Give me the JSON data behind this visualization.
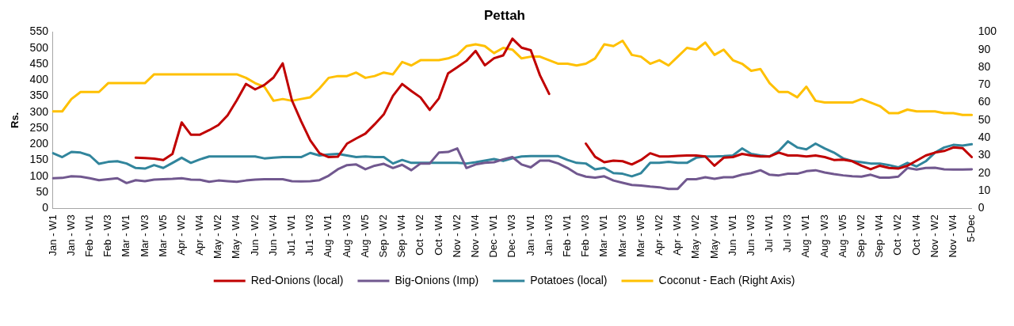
{
  "chart_data": {
    "type": "line",
    "title": "Pettah",
    "ylabel": "Rs.",
    "categories": [
      "Jan - W1",
      null,
      "Jan - W3",
      null,
      "Feb - W1",
      null,
      "Feb - W3",
      null,
      "Mar - W1",
      null,
      "Mar - W3",
      null,
      "Mar - W5",
      null,
      "Apr - W2",
      null,
      "Apr - W4",
      null,
      "May - W2",
      null,
      "May - W4",
      null,
      "Jun - W2",
      null,
      "Jun - W4",
      null,
      "Ju1 - W1",
      null,
      "Ju1 - W3",
      null,
      "Aug - W1",
      null,
      "Aug - W3",
      null,
      "Aug - W5",
      null,
      "Sep - W2",
      null,
      "Sep - W4",
      null,
      "Oct - W2",
      null,
      "Oct - W4",
      null,
      "Nov - W2",
      null,
      "Nov - W4",
      null,
      "Dec - W1",
      null,
      "Dec - W3",
      null,
      "Jan - W1",
      null,
      "Jan - W3",
      null,
      "Feb - W1",
      null,
      "Feb - W3",
      null,
      "Mar - W1",
      null,
      "Mar - W3",
      null,
      "Mar - W5",
      null,
      "Apr - W2",
      null,
      "Apr - W4",
      null,
      "May - W2",
      null,
      "May - W4",
      null,
      "Jun - W1",
      null,
      "Jun - W3",
      null,
      "Jul - W1",
      null,
      "Jul - W3",
      null,
      "Aug - W1",
      null,
      "Aug - W3",
      null,
      "Aug - W5",
      null,
      "Sep - W2",
      null,
      "Sep - W4",
      null,
      "Oct - W2",
      null,
      "Oct - W4",
      null,
      "Nov - W2",
      null,
      "Nov - W4",
      null,
      "5-Dec"
    ],
    "series": [
      {
        "name": "Red-Onions (local)",
        "color": "#c00000",
        "values": [
          null,
          null,
          null,
          null,
          null,
          null,
          null,
          null,
          null,
          158,
          157,
          155,
          151,
          170,
          268,
          230,
          230,
          244,
          260,
          290,
          337,
          388,
          371,
          385,
          408,
          452,
          337,
          272,
          212,
          172,
          160,
          161,
          202,
          218,
          233,
          262,
          293,
          351,
          388,
          366,
          346,
          307,
          343,
          421,
          440,
          460,
          491,
          446,
          468,
          477,
          529,
          501,
          493,
          415,
          357,
          null,
          null,
          null,
          202,
          161,
          144,
          149,
          147,
          137,
          151,
          172,
          162,
          162,
          164,
          165,
          165,
          162,
          133,
          158,
          160,
          170,
          165,
          162,
          162,
          174,
          165,
          165,
          162,
          165,
          160,
          151,
          152,
          147,
          133,
          122,
          133,
          126,
          124,
          133,
          149,
          165,
          174,
          179,
          190,
          188,
          160
        ]
      },
      {
        "name": "Big-Onions (Imp)",
        "color": "#71588f",
        "values": [
          94,
          95,
          100,
          99,
          94,
          88,
          91,
          94,
          79,
          88,
          85,
          90,
          91,
          92,
          94,
          90,
          89,
          83,
          87,
          85,
          83,
          87,
          90,
          91,
          91,
          91,
          85,
          84,
          85,
          88,
          102,
          122,
          135,
          137,
          122,
          133,
          139,
          126,
          136,
          119,
          140,
          140,
          174,
          176,
          187,
          126,
          137,
          142,
          144,
          153,
          160,
          137,
          128,
          149,
          149,
          140,
          126,
          108,
          99,
          96,
          100,
          87,
          80,
          73,
          71,
          68,
          66,
          61,
          61,
          91,
          91,
          97,
          92,
          97,
          97,
          105,
          110,
          119,
          105,
          103,
          108,
          108,
          116,
          119,
          112,
          107,
          103,
          100,
          99,
          105,
          96,
          96,
          99,
          126,
          121,
          126,
          127,
          122,
          121,
          121,
          122
        ]
      },
      {
        "name": "Potatoes (local)",
        "color": "#31859c",
        "values": [
          172,
          160,
          176,
          174,
          165,
          139,
          145,
          147,
          140,
          126,
          124,
          135,
          126,
          142,
          158,
          142,
          153,
          162,
          162,
          162,
          162,
          162,
          162,
          156,
          158,
          160,
          160,
          160,
          173,
          165,
          168,
          170,
          165,
          160,
          162,
          160,
          160,
          140,
          151,
          142,
          142,
          142,
          142,
          142,
          142,
          140,
          144,
          149,
          154,
          148,
          156,
          162,
          163,
          163,
          163,
          163,
          151,
          142,
          140,
          122,
          126,
          110,
          108,
          100,
          110,
          142,
          142,
          145,
          142,
          142,
          158,
          162,
          162,
          163,
          165,
          187,
          170,
          165,
          162,
          179,
          209,
          190,
          184,
          202,
          187,
          174,
          156,
          148,
          144,
          140,
          140,
          135,
          128,
          142,
          131,
          147,
          174,
          190,
          198,
          196,
          200
        ]
      },
      {
        "name": "Coconut - Each (Right Axis)",
        "color": "#ffc000",
        "axis": "y2",
        "values": [
          55,
          55,
          62,
          66,
          66,
          66,
          71,
          71,
          71,
          71,
          71,
          76,
          76,
          76,
          76,
          76,
          76,
          76,
          76,
          76,
          76,
          74,
          71,
          69,
          61,
          62,
          61,
          62,
          63,
          68,
          74,
          75,
          75,
          77,
          74,
          75,
          77,
          76,
          83,
          81,
          84,
          84,
          84,
          85,
          87,
          92,
          93,
          92,
          88,
          91,
          90,
          85,
          86,
          86,
          84,
          82,
          82,
          81,
          82,
          85,
          93,
          92,
          95,
          87,
          86,
          82,
          84,
          81,
          86,
          91,
          90,
          94,
          87,
          90,
          84,
          82,
          78,
          79,
          71,
          66,
          66,
          63,
          69,
          61,
          60,
          60,
          60,
          60,
          62,
          60,
          58,
          54,
          54,
          56,
          55,
          55,
          55,
          54,
          54,
          53,
          53
        ]
      }
    ],
    "ylim": [
      0,
      550
    ],
    "yticks": [
      0,
      50,
      100,
      150,
      200,
      250,
      300,
      350,
      400,
      450,
      500,
      550
    ],
    "y2lim": [
      0,
      100
    ],
    "y2ticks": [
      0,
      10,
      20,
      30,
      40,
      50,
      60,
      70,
      80,
      90,
      100
    ],
    "grid": false,
    "legend": "bottom",
    "marker": "none",
    "line_style": "solid"
  }
}
